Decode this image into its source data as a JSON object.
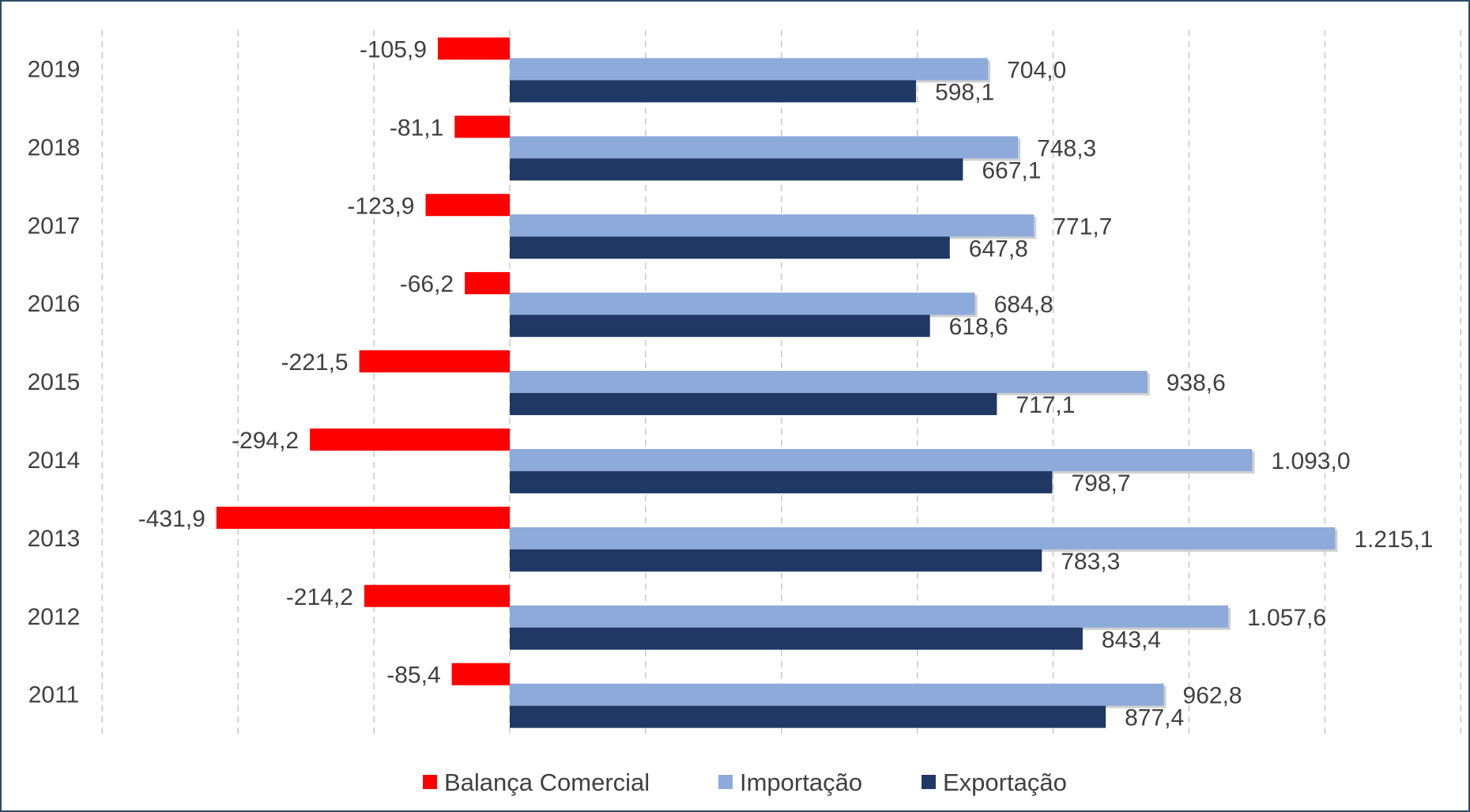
{
  "chart_data": {
    "type": "bar",
    "orientation": "horizontal",
    "title": "",
    "xlabel": "",
    "ylabel": "",
    "categories": [
      "2019",
      "2018",
      "2017",
      "2016",
      "2015",
      "2014",
      "2013",
      "2012",
      "2011"
    ],
    "series": [
      {
        "name": "Balança Comercial",
        "color": "#ff0000",
        "values": [
          -105.9,
          -81.1,
          -123.9,
          -66.2,
          -221.5,
          -294.2,
          -431.9,
          -214.2,
          -85.4
        ],
        "labels": [
          "-105,9",
          "-81,1",
          "-123,9",
          "-66,2",
          "-221,5",
          "-294,2",
          "-431,9",
          "-214,2",
          "-85,4"
        ]
      },
      {
        "name": "Importação",
        "color": "#8eaadb",
        "values": [
          704.0,
          748.3,
          771.7,
          684.8,
          938.6,
          1093.0,
          1215.1,
          1057.6,
          962.8
        ],
        "labels": [
          "704,0",
          "748,3",
          "771,7",
          "684,8",
          "938,6",
          "1.093,0",
          "1.215,1",
          "1.057,6",
          "962,8"
        ]
      },
      {
        "name": "Exportação",
        "color": "#1f3864",
        "values": [
          598.1,
          667.1,
          647.8,
          618.6,
          717.1,
          798.7,
          783.3,
          843.4,
          877.4
        ],
        "labels": [
          "598,1",
          "667,1",
          "647,8",
          "618,6",
          "717,1",
          "798,7",
          "783,3",
          "843,4",
          "877,4"
        ]
      }
    ],
    "xlim": [
      -600,
      1400
    ],
    "grid": "vertical dashed",
    "legend": "bottom"
  }
}
